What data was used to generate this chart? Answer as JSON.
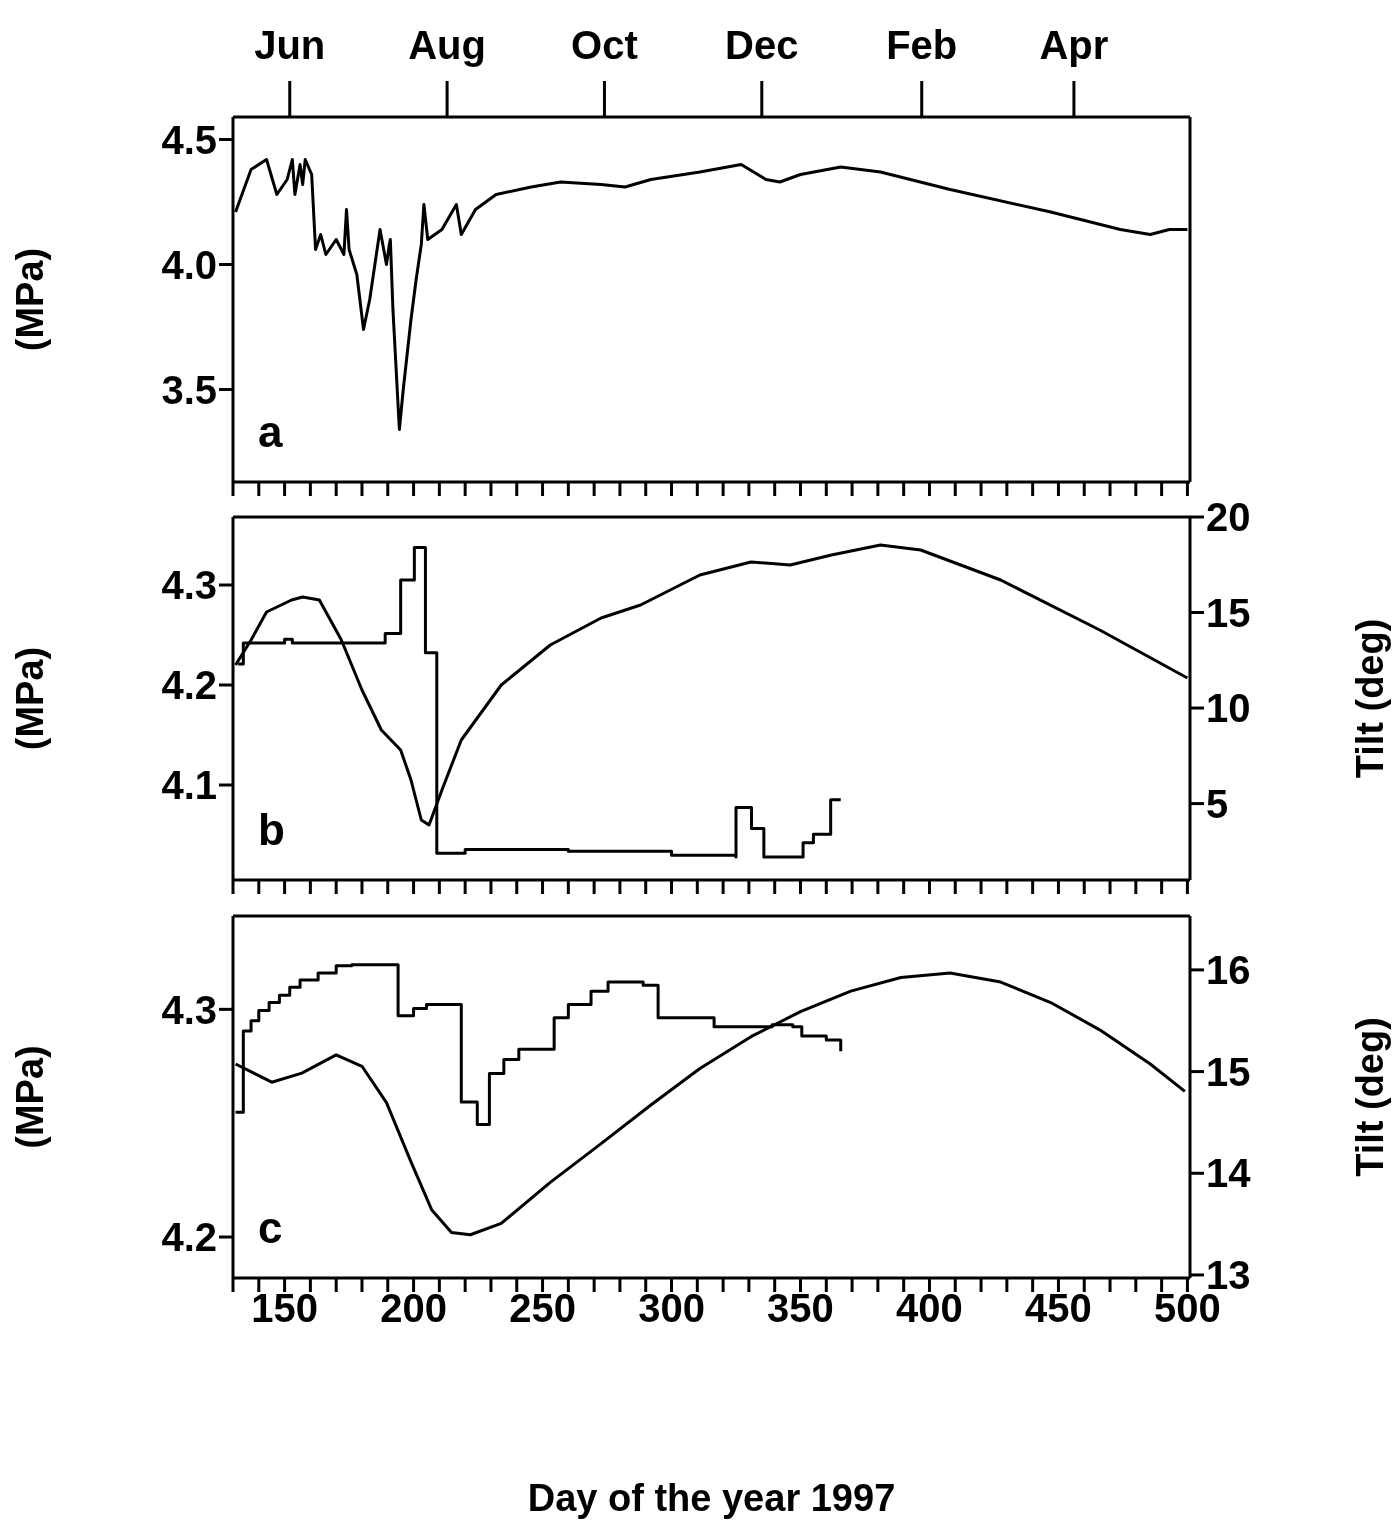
{
  "chart_data": [
    {
      "type": "line",
      "annotations": [
        "a"
      ],
      "ylabel": "(MPa)",
      "xlim": [
        130,
        501
      ],
      "ylim": [
        3.13,
        4.59
      ],
      "yticks": [
        {
          "value": 3.5,
          "label": "3.5"
        },
        {
          "value": 4,
          "label": "4.0"
        },
        {
          "value": 4.5,
          "label": "4.5"
        }
      ],
      "xticks": [
        {
          "value": 130,
          "label": null
        },
        {
          "value": 140,
          "label": null
        },
        {
          "value": 150,
          "label": null
        },
        {
          "value": 160,
          "label": null
        },
        {
          "value": 170,
          "label": null
        },
        {
          "value": 180,
          "label": null
        },
        {
          "value": 190,
          "label": null
        },
        {
          "value": 200,
          "label": null
        },
        {
          "value": 210,
          "label": null
        },
        {
          "value": 220,
          "label": null
        },
        {
          "value": 230,
          "label": null
        },
        {
          "value": 240,
          "label": null
        },
        {
          "value": 250,
          "label": null
        },
        {
          "value": 260,
          "label": null
        },
        {
          "value": 270,
          "label": null
        },
        {
          "value": 280,
          "label": null
        },
        {
          "value": 290,
          "label": null
        },
        {
          "value": 300,
          "label": null
        },
        {
          "value": 310,
          "label": null
        },
        {
          "value": 320,
          "label": null
        },
        {
          "value": 330,
          "label": null
        },
        {
          "value": 340,
          "label": null
        },
        {
          "value": 350,
          "label": null
        },
        {
          "value": 360,
          "label": null
        },
        {
          "value": 370,
          "label": null
        },
        {
          "value": 380,
          "label": null
        },
        {
          "value": 390,
          "label": null
        },
        {
          "value": 400,
          "label": null
        },
        {
          "value": 410,
          "label": null
        },
        {
          "value": 420,
          "label": null
        },
        {
          "value": 430,
          "label": null
        },
        {
          "value": 440,
          "label": null
        },
        {
          "value": 450,
          "label": null
        },
        {
          "value": 460,
          "label": null
        },
        {
          "value": 470,
          "label": null
        },
        {
          "value": 480,
          "label": null
        },
        {
          "value": 490,
          "label": null
        },
        {
          "value": 500,
          "label": null
        }
      ],
      "x2lim": [
        "1997-05-10",
        "1998-05-16"
      ],
      "x2ticks": [
        {
          "value": "1997-06-01",
          "label": "Jun"
        },
        {
          "value": "1997-08-01",
          "label": "Aug"
        },
        {
          "value": "1997-10-01",
          "label": "Oct"
        },
        {
          "value": "1997-12-01",
          "label": "Dec"
        },
        {
          "value": "1998-02-01",
          "label": "Feb"
        },
        {
          "value": "1998-04-01",
          "label": "Apr"
        }
      ],
      "tick_labels": "y",
      "series": [
        {
          "color": "#000000",
          "x": [
            131,
            137,
            143,
            147,
            151,
            153,
            154,
            156,
            157,
            158,
            160.5,
            162,
            164,
            166,
            170,
            173,
            174,
            175,
            178,
            180.6,
            183,
            187,
            189.5,
            190.6,
            191,
            192,
            194.5,
            196,
            199,
            201,
            203,
            204,
            205.5,
            211,
            216.6,
            218.5,
            224,
            232,
            245.6,
            257,
            272.7,
            282,
            292,
            311,
            327,
            336.6,
            342,
            350,
            365.6,
            381,
            408,
            447,
            474,
            485.6,
            493,
            500
          ],
          "values": [
            4.21,
            4.38,
            4.42,
            4.28,
            4.34,
            4.42,
            4.28,
            4.4,
            4.32,
            4.42,
            4.36,
            4.06,
            4.12,
            4.04,
            4.1,
            4.04,
            4.22,
            4.06,
            3.96,
            3.74,
            3.86,
            4.14,
            4.0,
            4.08,
            4.1,
            3.82,
            3.34,
            3.5,
            3.78,
            3.94,
            4.08,
            4.24,
            4.1,
            4.14,
            4.24,
            4.12,
            4.22,
            4.28,
            4.31,
            4.33,
            4.32,
            4.31,
            4.34,
            4.37,
            4.4,
            4.34,
            4.33,
            4.36,
            4.39,
            4.37,
            4.3,
            4.21,
            4.14,
            4.12,
            4.14,
            4.14
          ]
        }
      ]
    },
    {
      "type": "line",
      "annotations": [
        "b"
      ],
      "ylabel": "(MPa)",
      "y2label": "Tilt (deg)",
      "xlim": [
        130,
        501
      ],
      "ylim": [
        4.005,
        4.368
      ],
      "yticks": [
        4.1,
        4.2,
        4.3
      ],
      "y2lim": [
        1,
        20
      ],
      "y2ticks": [
        5,
        10,
        15,
        20
      ],
      "xticks": [
        {
          "value": 130,
          "label": null
        },
        {
          "value": 140,
          "label": null
        },
        {
          "value": 150,
          "label": null
        },
        {
          "value": 160,
          "label": null
        },
        {
          "value": 170,
          "label": null
        },
        {
          "value": 180,
          "label": null
        },
        {
          "value": 190,
          "label": null
        },
        {
          "value": 200,
          "label": null
        },
        {
          "value": 210,
          "label": null
        },
        {
          "value": 220,
          "label": null
        },
        {
          "value": 230,
          "label": null
        },
        {
          "value": 240,
          "label": null
        },
        {
          "value": 250,
          "label": null
        },
        {
          "value": 260,
          "label": null
        },
        {
          "value": 270,
          "label": null
        },
        {
          "value": 280,
          "label": null
        },
        {
          "value": 290,
          "label": null
        },
        {
          "value": 300,
          "label": null
        },
        {
          "value": 310,
          "label": null
        },
        {
          "value": 320,
          "label": null
        },
        {
          "value": 330,
          "label": null
        },
        {
          "value": 340,
          "label": null
        },
        {
          "value": 350,
          "label": null
        },
        {
          "value": 360,
          "label": null
        },
        {
          "value": 370,
          "label": null
        },
        {
          "value": 380,
          "label": null
        },
        {
          "value": 390,
          "label": null
        },
        {
          "value": 400,
          "label": null
        },
        {
          "value": 410,
          "label": null
        },
        {
          "value": 420,
          "label": null
        },
        {
          "value": 430,
          "label": null
        },
        {
          "value": 440,
          "label": null
        },
        {
          "value": 450,
          "label": null
        },
        {
          "value": 460,
          "label": null
        },
        {
          "value": 470,
          "label": null
        },
        {
          "value": 480,
          "label": null
        },
        {
          "value": 490,
          "label": null
        },
        {
          "value": 500,
          "label": null
        }
      ],
      "tick_labels": "y",
      "series": [
        {
          "color": "#000000",
          "x": [
            131,
            137,
            143,
            152.7,
            157,
            163.5,
            172,
            180,
            187.5,
            195,
            199,
            203,
            206,
            211,
            218.5,
            234,
            253,
            272.7,
            288,
            311,
            330.8,
            346,
            362,
            381,
            396.6,
            427.6,
            466,
            500
          ],
          "values": [
            4.22,
            4.245,
            4.273,
            4.285,
            4.288,
            4.285,
            4.245,
            4.195,
            4.155,
            4.135,
            4.105,
            4.065,
            4.06,
            4.095,
            4.145,
            4.2,
            4.24,
            4.267,
            4.28,
            4.31,
            4.323,
            4.32,
            4.33,
            4.34,
            4.335,
            4.305,
            4.255,
            4.207
          ]
        },
        {
          "type": "step",
          "axis": "y2",
          "color": "#000000",
          "x": [
            132,
            134,
            134,
            150,
            150,
            153,
            153,
            189,
            189,
            195,
            195,
            200.3,
            200.3,
            204.6,
            204.6,
            209,
            209,
            220,
            260,
            300,
            325,
            325,
            331,
            331,
            335.8,
            335.8,
            351,
            351,
            355,
            355,
            361.7,
            361.7,
            365.6
          ],
          "values": [
            12.3,
            12.3,
            13.4,
            13.4,
            13.6,
            13.6,
            13.4,
            13.4,
            13.9,
            13.9,
            16.7,
            16.7,
            18.4,
            18.4,
            12.9,
            12.9,
            2.4,
            2.6,
            2.5,
            2.3,
            2.2,
            4.8,
            4.8,
            3.7,
            3.7,
            2.2,
            2.2,
            2.95,
            2.95,
            3.4,
            3.4,
            5.2,
            5.2
          ]
        }
      ]
    },
    {
      "type": "line",
      "annotations": [
        "c"
      ],
      "ylabel": "(MPa)",
      "y2label": "Tilt (deg)",
      "xlabel": "Day of the year 1997",
      "xlim": [
        130,
        501
      ],
      "ylim": [
        4.182,
        4.341
      ],
      "yticks": [
        4.2,
        4.3
      ],
      "y2lim": [
        12.97,
        16.53
      ],
      "y2ticks": [
        13,
        14,
        15,
        16
      ],
      "xticks": [
        {
          "value": 130,
          "label": null
        },
        {
          "value": 140,
          "label": null
        },
        150,
        {
          "value": 160,
          "label": null
        },
        {
          "value": 170,
          "label": null
        },
        {
          "value": 180,
          "label": null
        },
        {
          "value": 190,
          "label": null
        },
        200,
        {
          "value": 210,
          "label": null
        },
        {
          "value": 220,
          "label": null
        },
        {
          "value": 230,
          "label": null
        },
        {
          "value": 240,
          "label": null
        },
        250,
        {
          "value": 260,
          "label": null
        },
        {
          "value": 270,
          "label": null
        },
        {
          "value": 280,
          "label": null
        },
        {
          "value": 290,
          "label": null
        },
        300,
        {
          "value": 310,
          "label": null
        },
        {
          "value": 320,
          "label": null
        },
        {
          "value": 330,
          "label": null
        },
        {
          "value": 340,
          "label": null
        },
        350,
        {
          "value": 360,
          "label": null
        },
        {
          "value": 370,
          "label": null
        },
        {
          "value": 380,
          "label": null
        },
        {
          "value": 390,
          "label": null
        },
        400,
        {
          "value": 410,
          "label": null
        },
        {
          "value": 420,
          "label": null
        },
        {
          "value": 430,
          "label": null
        },
        {
          "value": 440,
          "label": null
        },
        450,
        {
          "value": 460,
          "label": null
        },
        {
          "value": 470,
          "label": null
        },
        {
          "value": 480,
          "label": null
        },
        {
          "value": 490,
          "label": null
        },
        500
      ],
      "series": [
        {
          "color": "#000000",
          "x": [
            131,
            145,
            156.7,
            170,
            180,
            189.5,
            199,
            207,
            214.7,
            222,
            234,
            253,
            272.7,
            292,
            311,
            330.8,
            350,
            369.5,
            388.9,
            408,
            427.6,
            447,
            466,
            485.6,
            499
          ],
          "values": [
            4.276,
            4.268,
            4.272,
            4.28,
            4.275,
            4.259,
            4.233,
            4.212,
            4.202,
            4.201,
            4.206,
            4.224,
            4.241,
            4.258,
            4.274,
            4.288,
            4.299,
            4.308,
            4.314,
            4.316,
            4.312,
            4.303,
            4.291,
            4.276,
            4.264
          ]
        },
        {
          "type": "step",
          "axis": "y2",
          "color": "#000000",
          "x": [
            131,
            134,
            134,
            137,
            137,
            140,
            140,
            144,
            144,
            148,
            148,
            152,
            152,
            156,
            156,
            163,
            163,
            170,
            170,
            176,
            194,
            194,
            200,
            200,
            205,
            218.5,
            218.5,
            224.7,
            224.7,
            229.4,
            229.4,
            235,
            235,
            240.8,
            240.8,
            254.5,
            254.5,
            260,
            260,
            268.8,
            268.8,
            275.4,
            275.4,
            289,
            294.8,
            294.8,
            316.5,
            339,
            347,
            350.5,
            360,
            365.6
          ],
          "values": [
            14.6,
            14.6,
            15.4,
            15.4,
            15.5,
            15.5,
            15.6,
            15.6,
            15.68,
            15.68,
            15.75,
            15.75,
            15.83,
            15.83,
            15.9,
            15.9,
            15.97,
            15.97,
            16.04,
            16.05,
            16.05,
            15.55,
            15.55,
            15.62,
            15.66,
            15.66,
            14.7,
            14.7,
            14.48,
            14.48,
            14.98,
            14.98,
            15.12,
            15.12,
            15.22,
            15.22,
            15.53,
            15.53,
            15.66,
            15.66,
            15.79,
            15.79,
            15.88,
            15.85,
            15.83,
            15.53,
            15.44,
            15.46,
            15.44,
            15.35,
            15.31,
            15.2
          ]
        }
      ]
    }
  ]
}
